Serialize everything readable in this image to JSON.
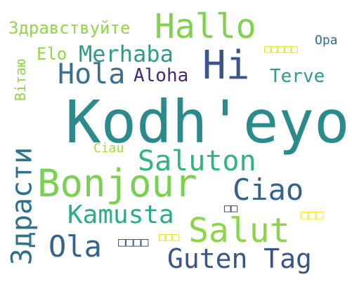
{
  "words": [
    {
      "text": "Kodh'eyo",
      "color": "#2a8a8c"
    },
    {
      "text": "Hallo",
      "color": "#7fd24a"
    },
    {
      "text": "Здравствуйте",
      "color": "#8fd744"
    },
    {
      "text": "Hi",
      "color": "#39568c"
    },
    {
      "text": "Merhaba",
      "color": "#2a9d8a"
    },
    {
      "text": "Hola",
      "color": "#3b6e8f"
    },
    {
      "text": "Aloha",
      "color": "#482677"
    },
    {
      "text": "Elo",
      "color": "#8fd744"
    },
    {
      "text": "Opa",
      "color": "#2d6f8e"
    },
    {
      "text": "Terve",
      "color": "#2a9d8a"
    },
    {
      "text": "Вітаю",
      "color": "#8fd744"
    },
    {
      "text": "□□□□□",
      "color": "#dde318"
    },
    {
      "text": "Ciau",
      "color": "#a5db36"
    },
    {
      "text": "Saluton",
      "color": "#2fb47c"
    },
    {
      "text": "Bonjour",
      "color": "#7ad151"
    },
    {
      "text": "Ciao",
      "color": "#33638d"
    },
    {
      "text": "Здрасти",
      "color": "#2c718e"
    },
    {
      "text": "Kamusta",
      "color": "#29af7f"
    },
    {
      "text": "Salut",
      "color": "#8bd646"
    },
    {
      "text": "Ola",
      "color": "#33638d"
    },
    {
      "text": "Guten Tag",
      "color": "#39568c"
    },
    {
      "text": "□□",
      "color": "#482677"
    },
    {
      "text": "□□□",
      "color": "#fde725"
    },
    {
      "text": "□□□□",
      "color": "#3b528b"
    },
    {
      "text": "□□□",
      "color": "#dde318"
    }
  ]
}
